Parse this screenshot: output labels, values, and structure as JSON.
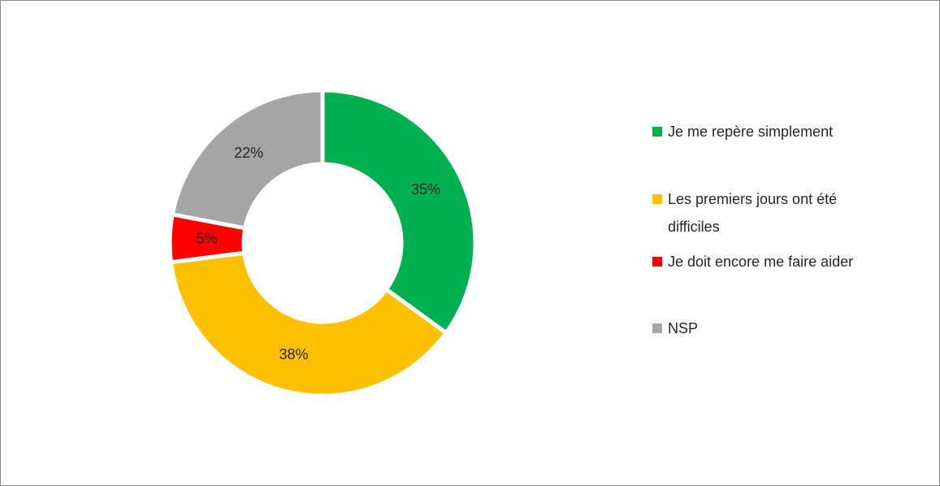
{
  "chart_data": {
    "type": "donut",
    "categories": [
      "Je me repère simplement",
      "Les premiers jours ont été difficiles",
      "Je doit encore me faire aider",
      "NSP"
    ],
    "values": [
      35,
      38,
      5,
      22
    ],
    "value_labels": [
      "35%",
      "38%",
      "5%",
      "22%"
    ],
    "colors": [
      "#00b050",
      "#ffc000",
      "#ff0000",
      "#a5a5a5"
    ],
    "legend": "right"
  }
}
